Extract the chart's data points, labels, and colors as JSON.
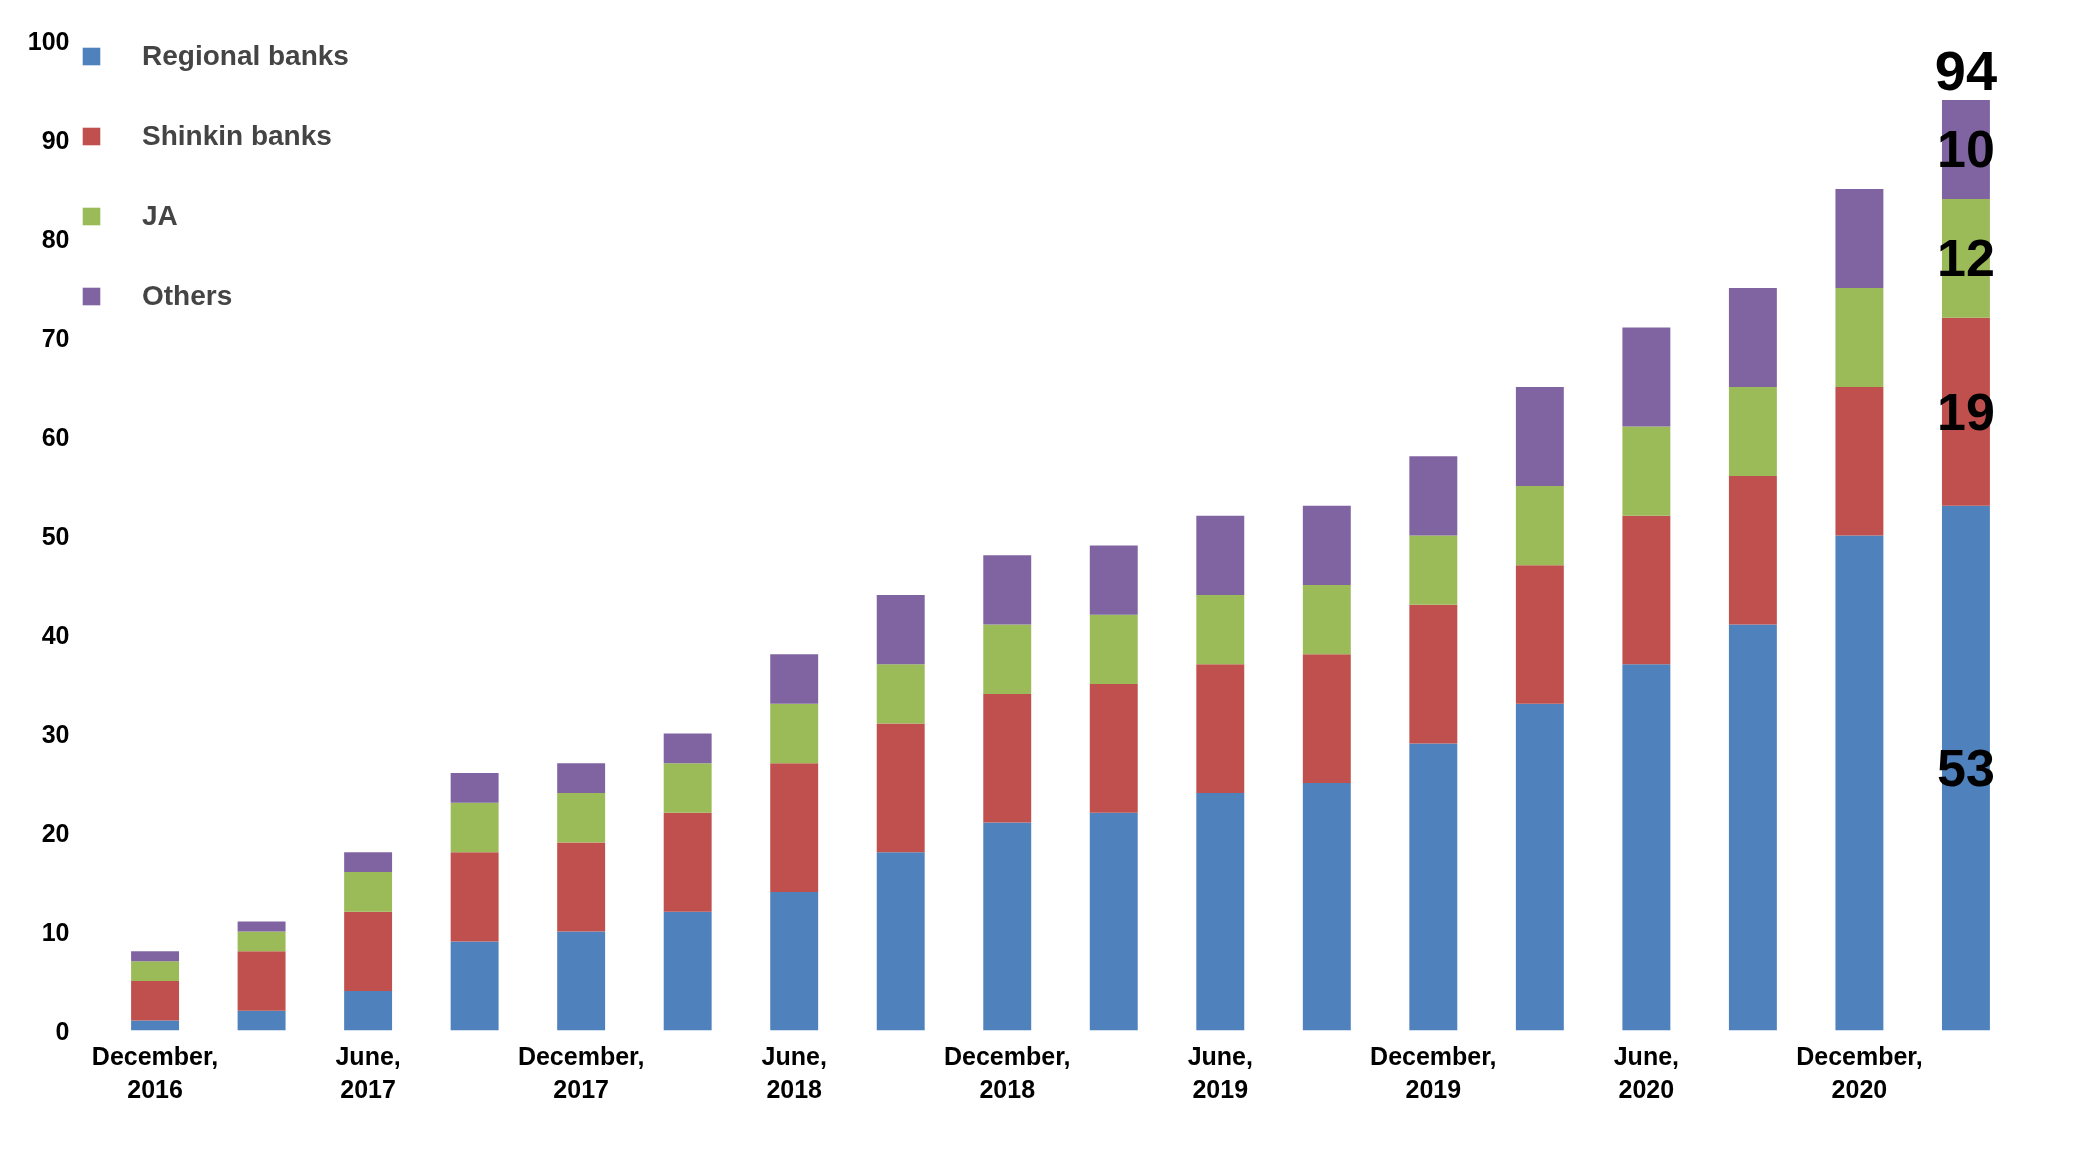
{
  "chart_data": {
    "type": "bar",
    "stacked": true,
    "categories": [
      "December,\n2016",
      null,
      "June,\n2017",
      null,
      "December,\n2017",
      null,
      "June,\n2018",
      null,
      "December,\n2018",
      null,
      "June,\n2019",
      null,
      "December,\n2019",
      null,
      "June,\n2020",
      null,
      "December,\n2020",
      null
    ],
    "series": [
      {
        "name": "Regional banks",
        "color": "#4f81bd",
        "values": [
          1,
          2,
          4,
          9,
          10,
          12,
          14,
          18,
          21,
          22,
          24,
          25,
          29,
          33,
          37,
          41,
          50,
          53
        ],
        "value_labels": [
          null,
          null,
          null,
          null,
          null,
          null,
          null,
          null,
          null,
          null,
          null,
          null,
          null,
          null,
          null,
          null,
          null,
          "53"
        ]
      },
      {
        "name": "Shinkin banks",
        "color": "#c0504d",
        "values": [
          4,
          6,
          8,
          9,
          9,
          10,
          13,
          13,
          13,
          13,
          13,
          13,
          14,
          14,
          15,
          15,
          15,
          19
        ],
        "value_labels": [
          null,
          null,
          null,
          null,
          null,
          null,
          null,
          null,
          null,
          null,
          null,
          null,
          null,
          null,
          null,
          null,
          null,
          "19"
        ]
      },
      {
        "name": "JA",
        "color": "#9bbb59",
        "values": [
          2,
          2,
          4,
          5,
          5,
          5,
          6,
          6,
          7,
          7,
          7,
          7,
          7,
          8,
          9,
          9,
          10,
          12
        ],
        "value_labels": [
          null,
          null,
          null,
          null,
          null,
          null,
          null,
          null,
          null,
          null,
          null,
          null,
          null,
          null,
          null,
          null,
          null,
          "12"
        ]
      },
      {
        "name": "Others",
        "color": "#8064a2",
        "values": [
          1,
          1,
          2,
          3,
          3,
          3,
          5,
          7,
          7,
          7,
          8,
          8,
          8,
          10,
          10,
          10,
          10,
          10
        ],
        "value_labels": [
          null,
          null,
          null,
          null,
          null,
          null,
          null,
          null,
          null,
          null,
          null,
          null,
          null,
          null,
          null,
          null,
          null,
          "10"
        ]
      }
    ],
    "totals": [
      null,
      null,
      null,
      null,
      null,
      null,
      null,
      null,
      null,
      null,
      null,
      null,
      null,
      null,
      null,
      null,
      null,
      "94"
    ],
    "ylim": [
      0,
      100
    ],
    "yticks": [
      0,
      10,
      20,
      30,
      40,
      50,
      60,
      70,
      80,
      90,
      100
    ],
    "grid": false,
    "legend": "top left"
  }
}
